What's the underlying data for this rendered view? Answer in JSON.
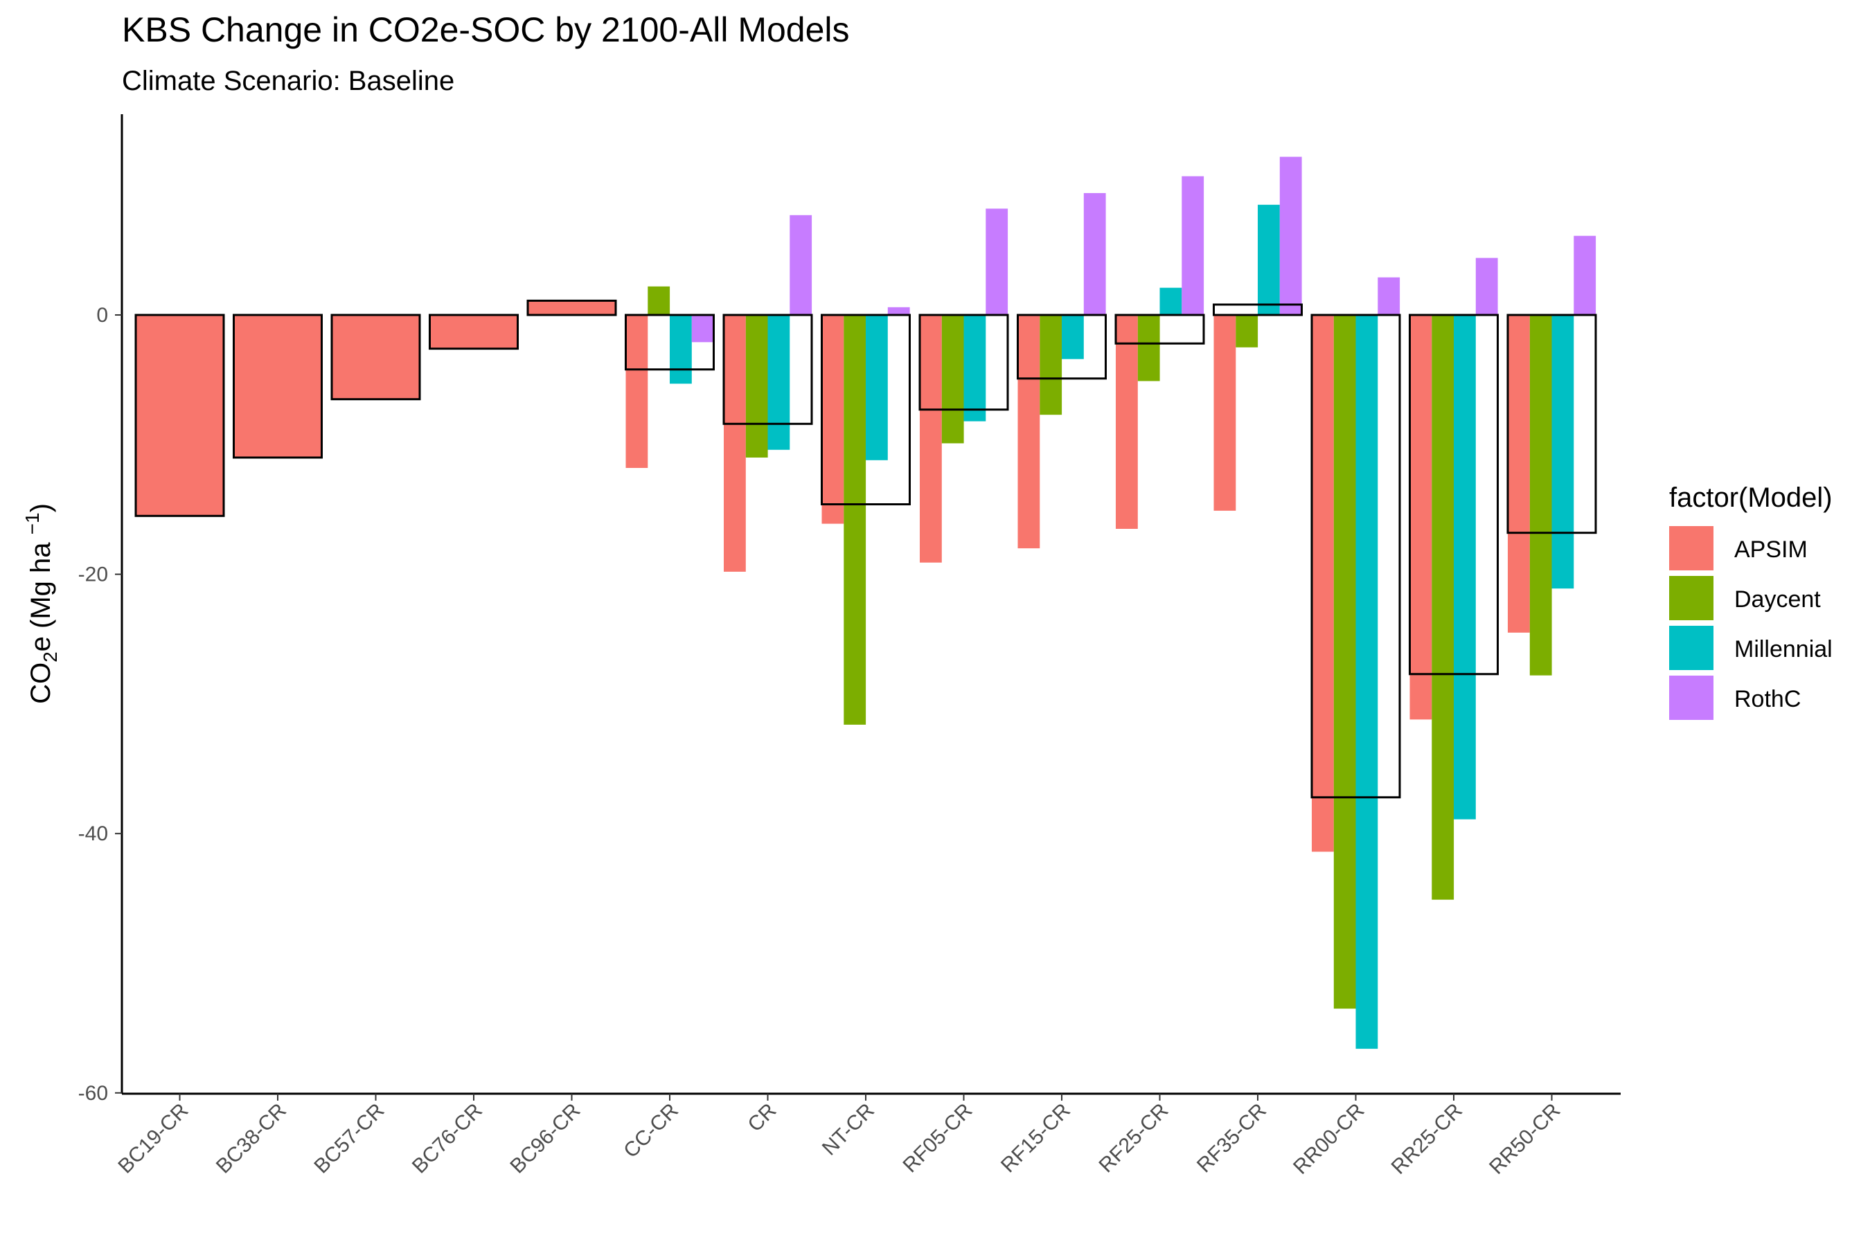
{
  "chart_data": {
    "type": "bar",
    "title": "KBS Change in CO2e-SOC by 2100-All Models",
    "subtitle": "Climate Scenario: Baseline",
    "ylabel": {
      "base": "CO",
      "sub1": "2",
      "mid": "e (Mg ha ",
      "sup": "−1",
      "end": ")"
    },
    "xlabel": "",
    "ylim": [
      -60,
      15
    ],
    "yticks": [
      0,
      -20,
      -40,
      -60
    ],
    "ytick_labels": [
      "0",
      "-20",
      "-40",
      "-60"
    ],
    "categories": [
      "BC19-CR",
      "BC38-CR",
      "BC57-CR",
      "BC76-CR",
      "BC96-CR",
      "CC-CR",
      "CR",
      "NT-CR",
      "RF05-CR",
      "RF15-CR",
      "RF25-CR",
      "RF35-CR",
      "RR00-CR",
      "RR25-CR",
      "RR50-CR"
    ],
    "series": [
      {
        "name": "APSIM",
        "color": "#F8766D",
        "values": [
          -15.5,
          -11.0,
          -6.5,
          -2.6,
          1.1,
          -11.8,
          -19.8,
          -16.1,
          -19.1,
          -18.0,
          -16.5,
          -15.1,
          -41.4,
          -31.2,
          -24.5
        ]
      },
      {
        "name": "Daycent",
        "color": "#7CAE00",
        "values": [
          null,
          null,
          null,
          null,
          null,
          2.2,
          -11.0,
          -31.6,
          -9.9,
          -7.7,
          -5.1,
          -2.5,
          -53.5,
          -45.1,
          -27.8
        ]
      },
      {
        "name": "Millennial",
        "color": "#00BFC4",
        "values": [
          null,
          null,
          null,
          null,
          null,
          -5.3,
          -10.4,
          -11.2,
          -8.2,
          -3.4,
          2.1,
          8.5,
          -56.6,
          -38.9,
          -21.1
        ]
      },
      {
        "name": "RothC",
        "color": "#C77CFF",
        "values": [
          null,
          null,
          null,
          null,
          null,
          -2.1,
          7.7,
          0.6,
          8.2,
          9.4,
          10.7,
          12.2,
          2.9,
          4.4,
          6.1
        ]
      }
    ],
    "mean_values": [
      -15.5,
      -11.0,
      -6.5,
      -2.6,
      1.1,
      -4.2,
      -8.4,
      -14.6,
      -7.3,
      -4.9,
      -2.2,
      0.8,
      -37.2,
      -27.7,
      -16.8
    ],
    "legend": {
      "title": "factor(Model)",
      "position": "right"
    },
    "grid": false
  }
}
